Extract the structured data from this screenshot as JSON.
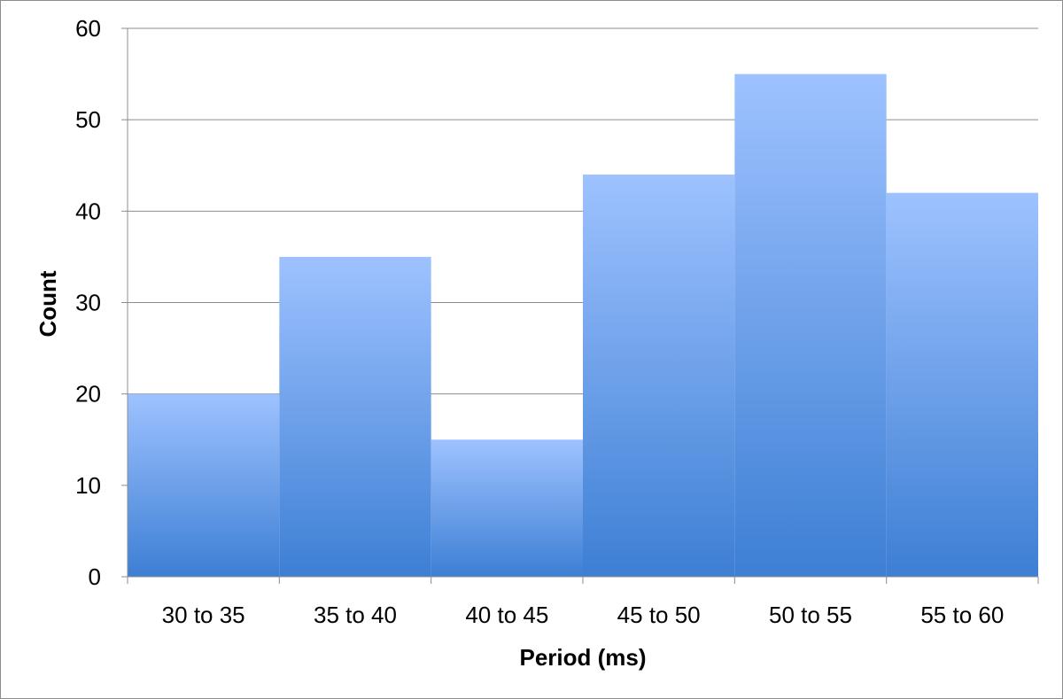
{
  "chart_data": {
    "type": "bar",
    "categories": [
      "30 to 35",
      "35 to 40",
      "40 to 45",
      "45 to 50",
      "50 to 55",
      "55 to 60"
    ],
    "values": [
      20,
      35,
      15,
      44,
      55,
      42
    ],
    "title": "",
    "xlabel": "Period (ms)",
    "ylabel": "Count",
    "ylim": [
      0,
      60
    ],
    "yticks": [
      0,
      10,
      20,
      30,
      40,
      50,
      60
    ],
    "grid": true,
    "legend": "none",
    "bar_colors": {
      "top": "#9ec2ff",
      "bottom": "#3d7fd4"
    },
    "gridline_color": "#8c8c8c"
  }
}
